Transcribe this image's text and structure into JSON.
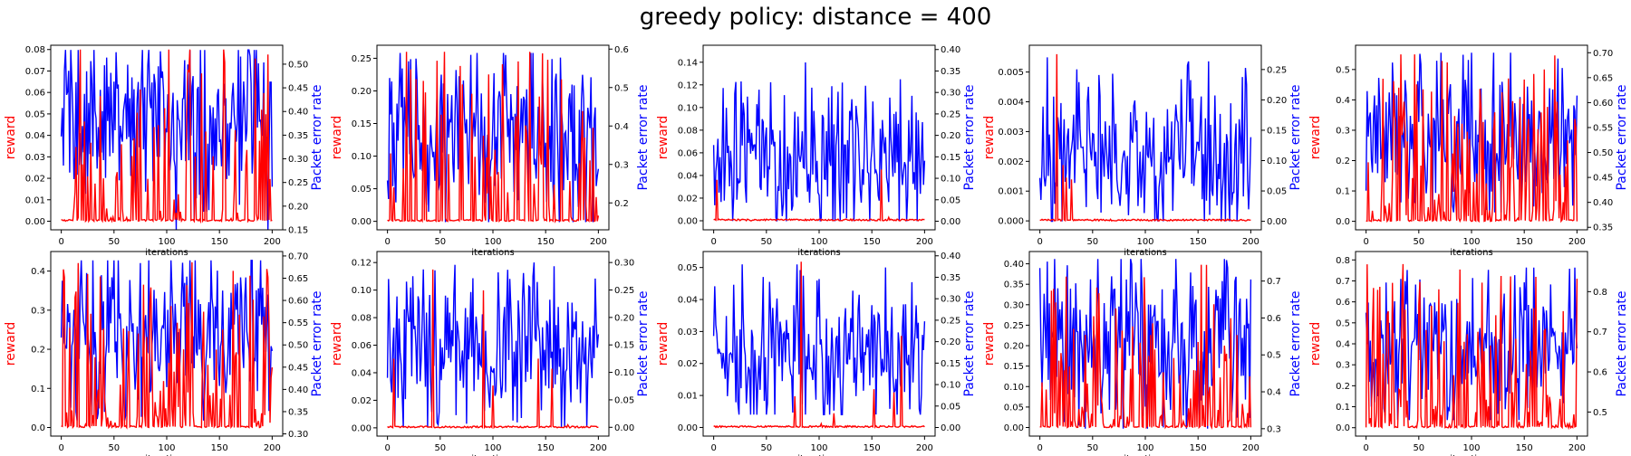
{
  "suptitle": "greedy policy: distance = 400",
  "colors": {
    "reward": "#ff0000",
    "per": "#0000ff"
  },
  "chart_data": [
    {
      "type": "line",
      "xlabel": "iterations",
      "ylabel_left": "reward",
      "ylabel_right": "Packet error rate",
      "xlim": [
        -10,
        210
      ],
      "xticks": [
        "0",
        "50",
        "100",
        "150",
        "200"
      ],
      "ylim_left": [
        -0.004,
        0.082
      ],
      "yticks_left": [
        "0.00",
        "0.01",
        "0.02",
        "0.03",
        "0.04",
        "0.05",
        "0.06",
        "0.07",
        "0.08"
      ],
      "ylim_right": [
        0.15,
        0.54
      ],
      "yticks_right": [
        "0.15",
        "0.20",
        "0.25",
        "0.30",
        "0.35",
        "0.40",
        "0.45",
        "0.50"
      ],
      "series_left": {
        "name": "",
        "stats": {
          "min": 0.0,
          "max": 0.08,
          "mean": 0.015,
          "spike_prob": 0.35
        }
      },
      "series_right": {
        "name": "",
        "stats": {
          "min": 0.15,
          "max": 0.53,
          "mean": 0.38
        }
      }
    },
    {
      "type": "line",
      "xlabel": "iterations",
      "ylabel_left": "reward",
      "ylabel_right": "Packet error rate",
      "xlim": [
        -10,
        210
      ],
      "xticks": [
        "0",
        "50",
        "100",
        "150",
        "200"
      ],
      "ylim_left": [
        -0.013,
        0.27
      ],
      "yticks_left": [
        "0.00",
        "0.05",
        "0.10",
        "0.15",
        "0.20",
        "0.25"
      ],
      "ylim_right": [
        0.13,
        0.61
      ],
      "yticks_right": [
        "0.2",
        "0.3",
        "0.4",
        "0.5",
        "0.6"
      ],
      "series_left": {
        "name": "",
        "stats": {
          "min": 0.0,
          "max": 0.26,
          "mean": 0.03,
          "spike_prob": 0.35
        }
      },
      "series_right": {
        "name": "",
        "stats": {
          "min": 0.15,
          "max": 0.59,
          "mean": 0.38
        }
      }
    },
    {
      "type": "line",
      "xlabel": "iterations",
      "ylabel_left": "reward",
      "ylabel_right": "Packet error rate",
      "xlim": [
        -10,
        210
      ],
      "xticks": [
        "0",
        "50",
        "100",
        "150",
        "200"
      ],
      "ylim_left": [
        -0.008,
        0.155
      ],
      "yticks_left": [
        "0.00",
        "0.02",
        "0.04",
        "0.06",
        "0.08",
        "0.10",
        "0.12",
        "0.14"
      ],
      "ylim_right": [
        -0.02,
        0.41
      ],
      "yticks_right": [
        "0.00",
        "0.05",
        "0.10",
        "0.15",
        "0.20",
        "0.25",
        "0.30",
        "0.35",
        "0.40"
      ],
      "series_left": {
        "name": "",
        "stats": {
          "min": 0.0,
          "max": 0.148,
          "mean": 0.002,
          "spike_prob": 0.02
        }
      },
      "series_right": {
        "name": "",
        "stats": {
          "min": 0.0,
          "max": 0.37,
          "mean": 0.16
        }
      }
    },
    {
      "type": "line",
      "xlabel": "iterations",
      "ylabel_left": "reward",
      "ylabel_right": "Packet error rate",
      "xlim": [
        -10,
        210
      ],
      "xticks": [
        "0",
        "50",
        "100",
        "150",
        "200"
      ],
      "ylim_left": [
        -0.0003,
        0.0059
      ],
      "yticks_left": [
        "0.000",
        "0.001",
        "0.002",
        "0.003",
        "0.004",
        "0.005"
      ],
      "ylim_right": [
        -0.014,
        0.29
      ],
      "yticks_right": [
        "0.00",
        "0.05",
        "0.10",
        "0.15",
        "0.20",
        "0.25"
      ],
      "series_left": {
        "name": "",
        "stats": {
          "min": 0.0,
          "max": 0.0056,
          "mean": 0.0001,
          "spike_prob": 0.03
        }
      },
      "series_right": {
        "name": "",
        "stats": {
          "min": 0.0,
          "max": 0.27,
          "mean": 0.11
        }
      }
    },
    {
      "type": "line",
      "xlabel": "iterations",
      "ylabel_left": "reward",
      "ylabel_right": "Packet error rate",
      "xlim": [
        -10,
        210
      ],
      "xticks": [
        "0",
        "50",
        "100",
        "150",
        "200"
      ],
      "ylim_left": [
        -0.028,
        0.58
      ],
      "yticks_left": [
        "0.0",
        "0.1",
        "0.2",
        "0.3",
        "0.4",
        "0.5"
      ],
      "ylim_right": [
        0.345,
        0.715
      ],
      "yticks_right": [
        "0.35",
        "0.40",
        "0.45",
        "0.50",
        "0.55",
        "0.60",
        "0.65",
        "0.70"
      ],
      "series_left": {
        "name": "",
        "stats": {
          "min": 0.0,
          "max": 0.55,
          "mean": 0.08,
          "spike_prob": 0.5
        }
      },
      "series_right": {
        "name": "",
        "stats": {
          "min": 0.38,
          "max": 0.7,
          "mean": 0.53
        }
      }
    },
    {
      "type": "line",
      "xlabel": "iterations",
      "ylabel_left": "reward",
      "ylabel_right": "Packet error rate",
      "xlim": [
        -10,
        210
      ],
      "xticks": [
        "0",
        "50",
        "100",
        "150",
        "200"
      ],
      "ylim_left": [
        -0.022,
        0.45
      ],
      "yticks_left": [
        "0.0",
        "0.1",
        "0.2",
        "0.3",
        "0.4"
      ],
      "ylim_right": [
        0.295,
        0.71
      ],
      "yticks_right": [
        "0.30",
        "0.35",
        "0.40",
        "0.45",
        "0.50",
        "0.55",
        "0.60",
        "0.65",
        "0.70"
      ],
      "series_left": {
        "name": "",
        "stats": {
          "min": 0.0,
          "max": 0.43,
          "mean": 0.09,
          "spike_prob": 0.55
        }
      },
      "series_right": {
        "name": "",
        "stats": {
          "min": 0.33,
          "max": 0.69,
          "mean": 0.52
        }
      }
    },
    {
      "type": "line",
      "xlabel": "iterations",
      "ylabel_left": "reward",
      "ylabel_right": "Packet error rate",
      "xlim": [
        -10,
        210
      ],
      "xticks": [
        "0",
        "50",
        "100",
        "150",
        "200"
      ],
      "ylim_left": [
        -0.006,
        0.128
      ],
      "yticks_left": [
        "0.00",
        "0.02",
        "0.04",
        "0.06",
        "0.08",
        "0.10",
        "0.12"
      ],
      "ylim_right": [
        -0.016,
        0.32
      ],
      "yticks_right": [
        "0.00",
        "0.05",
        "0.10",
        "0.15",
        "0.20",
        "0.25",
        "0.30"
      ],
      "series_left": {
        "name": "",
        "stats": {
          "min": 0.0,
          "max": 0.125,
          "mean": 0.002,
          "spike_prob": 0.02
        }
      },
      "series_right": {
        "name": "",
        "stats": {
          "min": 0.0,
          "max": 0.3,
          "mean": 0.15
        }
      }
    },
    {
      "type": "line",
      "xlabel": "iterations",
      "ylabel_left": "reward",
      "ylabel_right": "Packet error rate",
      "xlim": [
        -10,
        210
      ],
      "xticks": [
        "0",
        "50",
        "100",
        "150",
        "200"
      ],
      "ylim_left": [
        -0.0027,
        0.055
      ],
      "yticks_left": [
        "0.00",
        "0.01",
        "0.02",
        "0.03",
        "0.04",
        "0.05"
      ],
      "ylim_right": [
        -0.02,
        0.41
      ],
      "yticks_right": [
        "0.00",
        "0.05",
        "0.10",
        "0.15",
        "0.20",
        "0.25",
        "0.30",
        "0.35",
        "0.40"
      ],
      "series_left": {
        "name": "",
        "stats": {
          "min": 0.0,
          "max": 0.052,
          "mean": 0.001,
          "spike_prob": 0.04
        }
      },
      "series_right": {
        "name": "",
        "stats": {
          "min": 0.03,
          "max": 0.38,
          "mean": 0.17
        }
      }
    },
    {
      "type": "line",
      "xlabel": "iterations",
      "ylabel_left": "reward",
      "ylabel_right": "Packet error rate",
      "xlim": [
        -10,
        210
      ],
      "xticks": [
        "0",
        "50",
        "100",
        "150",
        "200"
      ],
      "ylim_left": [
        -0.021,
        0.43
      ],
      "yticks_left": [
        "0.00",
        "0.05",
        "0.10",
        "0.15",
        "0.20",
        "0.25",
        "0.30",
        "0.35",
        "0.40"
      ],
      "ylim_right": [
        0.28,
        0.78
      ],
      "yticks_right": [
        "0.3",
        "0.4",
        "0.5",
        "0.6",
        "0.7"
      ],
      "series_left": {
        "name": "",
        "stats": {
          "min": 0.0,
          "max": 0.4,
          "mean": 0.07,
          "spike_prob": 0.55
        }
      },
      "series_right": {
        "name": "",
        "stats": {
          "min": 0.3,
          "max": 0.76,
          "mean": 0.53
        }
      }
    },
    {
      "type": "line",
      "xlabel": "iterations",
      "ylabel_left": "reward",
      "ylabel_right": "Packet error rate",
      "xlim": [
        -10,
        210
      ],
      "xticks": [
        "0",
        "50",
        "100",
        "150",
        "200"
      ],
      "ylim_left": [
        -0.04,
        0.84
      ],
      "yticks_left": [
        "0.0",
        "0.1",
        "0.2",
        "0.3",
        "0.4",
        "0.5",
        "0.6",
        "0.7",
        "0.8"
      ],
      "ylim_right": [
        0.44,
        0.9
      ],
      "yticks_right": [
        "0.5",
        "0.6",
        "0.7",
        "0.8"
      ],
      "series_left": {
        "name": "",
        "stats": {
          "min": 0.0,
          "max": 0.78,
          "mean": 0.15,
          "spike_prob": 0.6
        }
      },
      "series_right": {
        "name": "",
        "stats": {
          "min": 0.48,
          "max": 0.86,
          "mean": 0.65
        }
      }
    }
  ]
}
